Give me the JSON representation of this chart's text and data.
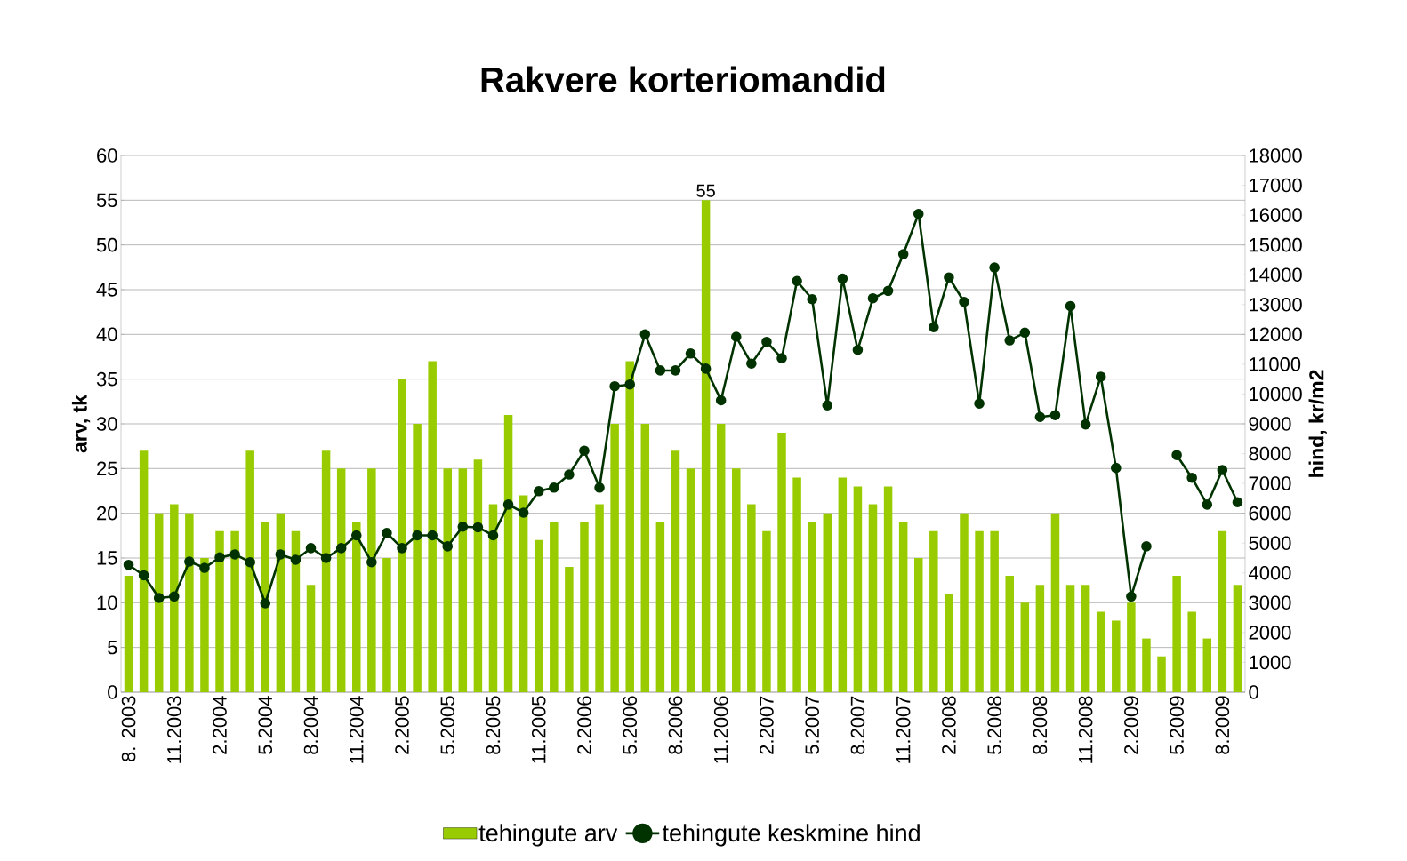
{
  "chart_data": {
    "type": "bar",
    "title": "Rakvere korteriomandid",
    "ylabel": "arv, tk",
    "y2label": "hind, kr/m2",
    "categories": [
      "8. 2003",
      null,
      null,
      "11.2003",
      null,
      null,
      "2.2004",
      null,
      null,
      "5.2004",
      null,
      null,
      "8.2004",
      null,
      null,
      "11.2004",
      null,
      null,
      "2.2005",
      null,
      null,
      "5.2005",
      null,
      null,
      "8.2005",
      null,
      null,
      "11.2005",
      null,
      null,
      "2.2006",
      null,
      null,
      "5.2006",
      null,
      null,
      "8.2006",
      null,
      null,
      "11.2006",
      null,
      null,
      "2.2007",
      null,
      null,
      "5.2007",
      null,
      null,
      "8.2007",
      null,
      null,
      "11.2007",
      null,
      null,
      "2.2008",
      null,
      null,
      "5.2008",
      null,
      null,
      "8.2008",
      null,
      null,
      "11.2008",
      null,
      null,
      "2.2009",
      null,
      null,
      "5.2009",
      null,
      null,
      "8.2009",
      null
    ],
    "series": [
      {
        "name": "tehingute arv",
        "color": "#99cc00",
        "values": [
          13,
          27,
          20,
          21,
          20,
          15,
          18,
          18,
          27,
          19,
          20,
          18,
          12,
          27,
          25,
          19,
          25,
          15,
          35,
          30,
          37,
          25,
          25,
          26,
          21,
          31,
          22,
          17,
          19,
          14,
          19,
          21,
          30,
          37,
          30,
          19,
          27,
          25,
          55,
          30,
          25,
          21,
          18,
          29,
          24,
          19,
          20,
          24,
          23,
          21,
          23,
          19,
          15,
          18,
          11,
          20,
          18,
          18,
          13,
          10,
          12,
          20,
          12,
          12,
          9,
          8,
          10,
          6,
          4,
          13,
          9,
          6,
          18,
          12
        ],
        "value_labels": [
          null,
          null,
          null,
          null,
          null,
          null,
          null,
          null,
          null,
          null,
          null,
          null,
          null,
          null,
          null,
          null,
          null,
          null,
          null,
          null,
          null,
          null,
          null,
          null,
          null,
          null,
          null,
          null,
          null,
          null,
          null,
          null,
          null,
          null,
          null,
          null,
          null,
          null,
          "55",
          null,
          null,
          null,
          null,
          null,
          null,
          null,
          null,
          null,
          null,
          null,
          null,
          null,
          null,
          null,
          null,
          null,
          null,
          null,
          null,
          null,
          null,
          null,
          null,
          null,
          null,
          null,
          null,
          null,
          null,
          null,
          null,
          null,
          null,
          null
        ]
      },
      {
        "name": "tehingute keskmine hind",
        "type": "line",
        "axis": "y2",
        "color": "#003300",
        "marker": "circle",
        "line_style": "solid",
        "values": [
          4270,
          3920,
          3160,
          3210,
          4380,
          4170,
          4520,
          4620,
          4360,
          2980,
          4620,
          4440,
          4830,
          4500,
          4830,
          5260,
          4360,
          5340,
          4830,
          5260,
          5260,
          4890,
          5550,
          5530,
          5260,
          6290,
          6020,
          6740,
          6860,
          7300,
          8100,
          6860,
          10260,
          10320,
          12000,
          10790,
          10790,
          11360,
          10850,
          9790,
          11920,
          11020,
          11750,
          11200,
          13790,
          13180,
          9620,
          13870,
          11480,
          13210,
          13460,
          14690,
          16040,
          12240,
          13910,
          13090,
          9680,
          14240,
          11800,
          12060,
          9230,
          9290,
          12950,
          8980,
          10580,
          7520,
          3210,
          4890,
          null,
          7950,
          7190,
          6290,
          7450,
          6370
        ]
      }
    ],
    "ylim": [
      0,
      60
    ],
    "yticks": [
      0,
      5,
      10,
      15,
      20,
      25,
      30,
      35,
      40,
      45,
      50,
      55,
      60
    ],
    "y2lim": [
      0,
      18000
    ],
    "y2ticks": [
      0,
      1000,
      2000,
      3000,
      4000,
      5000,
      6000,
      7000,
      8000,
      9000,
      10000,
      11000,
      12000,
      13000,
      14000,
      15000,
      16000,
      17000,
      18000
    ],
    "grid": "y",
    "legend": "bottom"
  }
}
